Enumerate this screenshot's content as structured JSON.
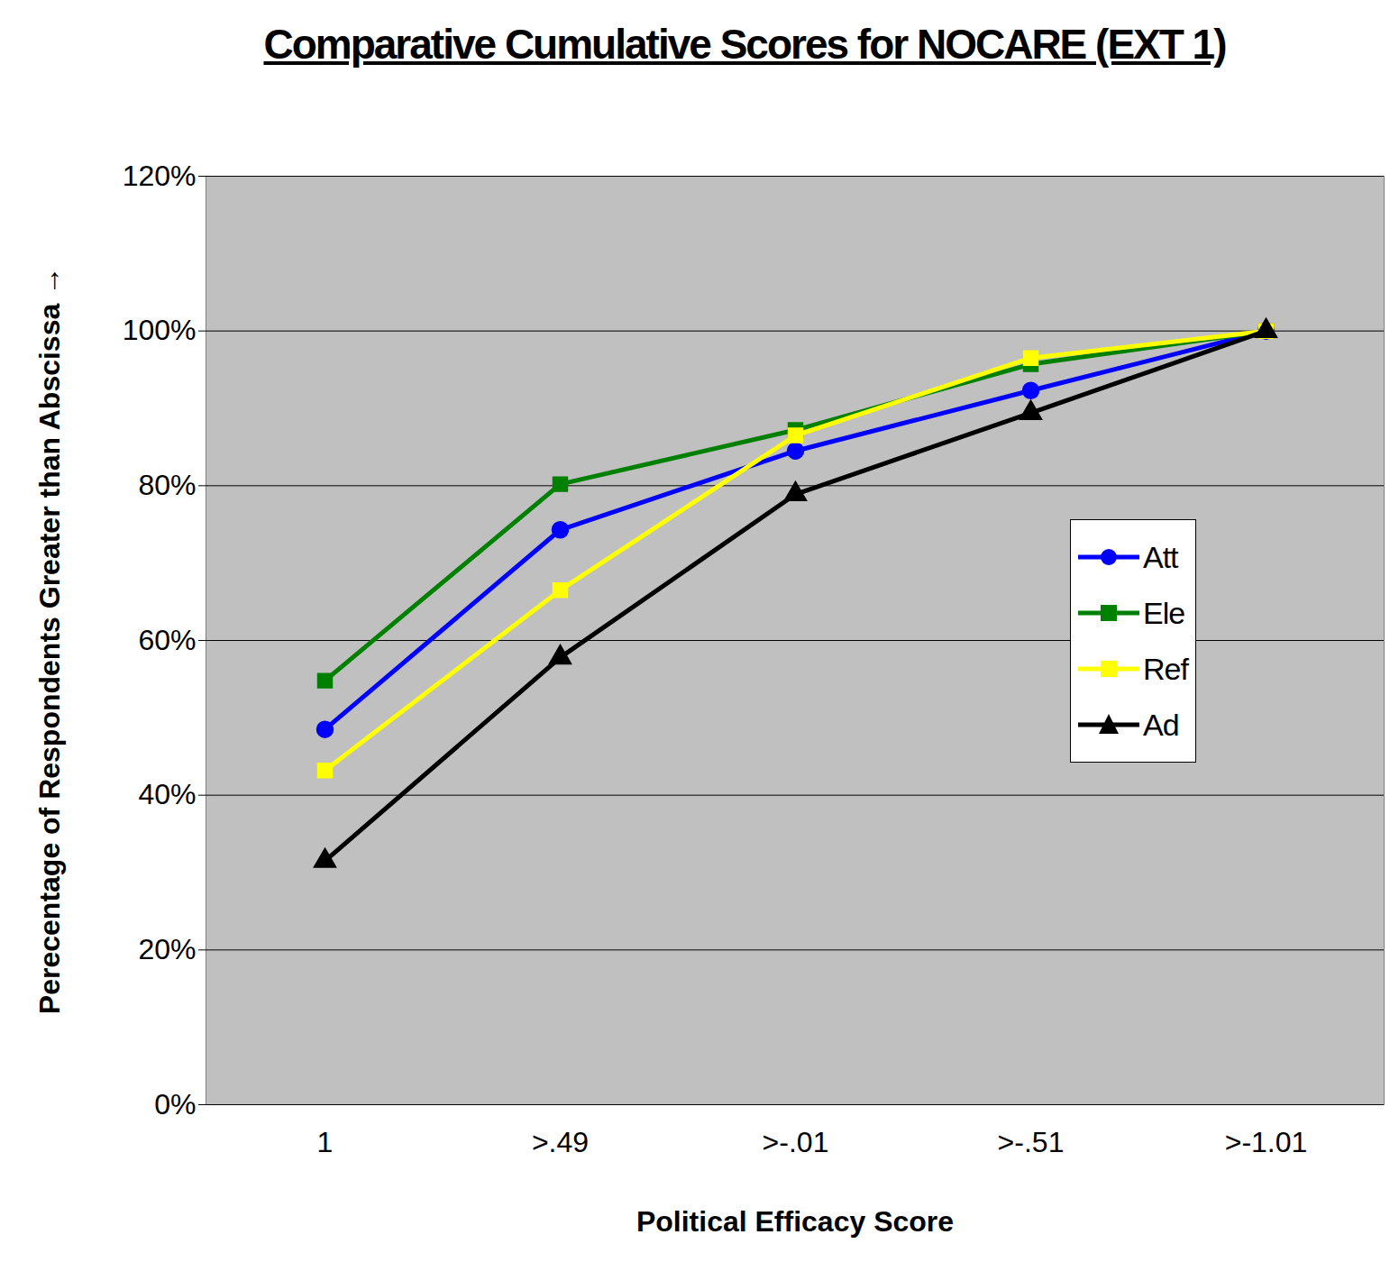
{
  "chart_data": {
    "type": "line",
    "title": "Comparative Cumulative Scores for NOCARE (EXT 1)",
    "x_label": "Political Efficacy Score",
    "y_label": "Perecentage of Respondents Greater than Abscissa",
    "categories": [
      "1",
      ">.49",
      ">-.01",
      ">-.51",
      ">-1.01"
    ],
    "series": [
      {
        "name": "Att",
        "color": "#0000ff",
        "marker": "circle",
        "values": [
          48.5,
          74.3,
          84.5,
          92.3,
          100
        ]
      },
      {
        "name": "Ele",
        "color": "#008000",
        "marker": "square",
        "values": [
          54.8,
          80.2,
          87.2,
          95.7,
          100
        ]
      },
      {
        "name": "Ref",
        "color": "#ffff00",
        "marker": "square",
        "values": [
          43.2,
          66.5,
          86.5,
          96.5,
          100
        ]
      },
      {
        "name": "Ad",
        "color": "#000000",
        "marker": "triangle",
        "values": [
          31.5,
          57.8,
          78.9,
          89.4,
          100
        ]
      }
    ],
    "ylim": [
      0,
      120
    ],
    "yticks": [
      {
        "value": 0,
        "label": "0%"
      },
      {
        "value": 20,
        "label": "20%"
      },
      {
        "value": 40,
        "label": "40%"
      },
      {
        "value": 60,
        "label": "60%"
      },
      {
        "value": 80,
        "label": "80%"
      },
      {
        "value": 100,
        "label": "100%"
      },
      {
        "value": 120,
        "label": "120%"
      }
    ],
    "grid": true,
    "legend": "right"
  }
}
